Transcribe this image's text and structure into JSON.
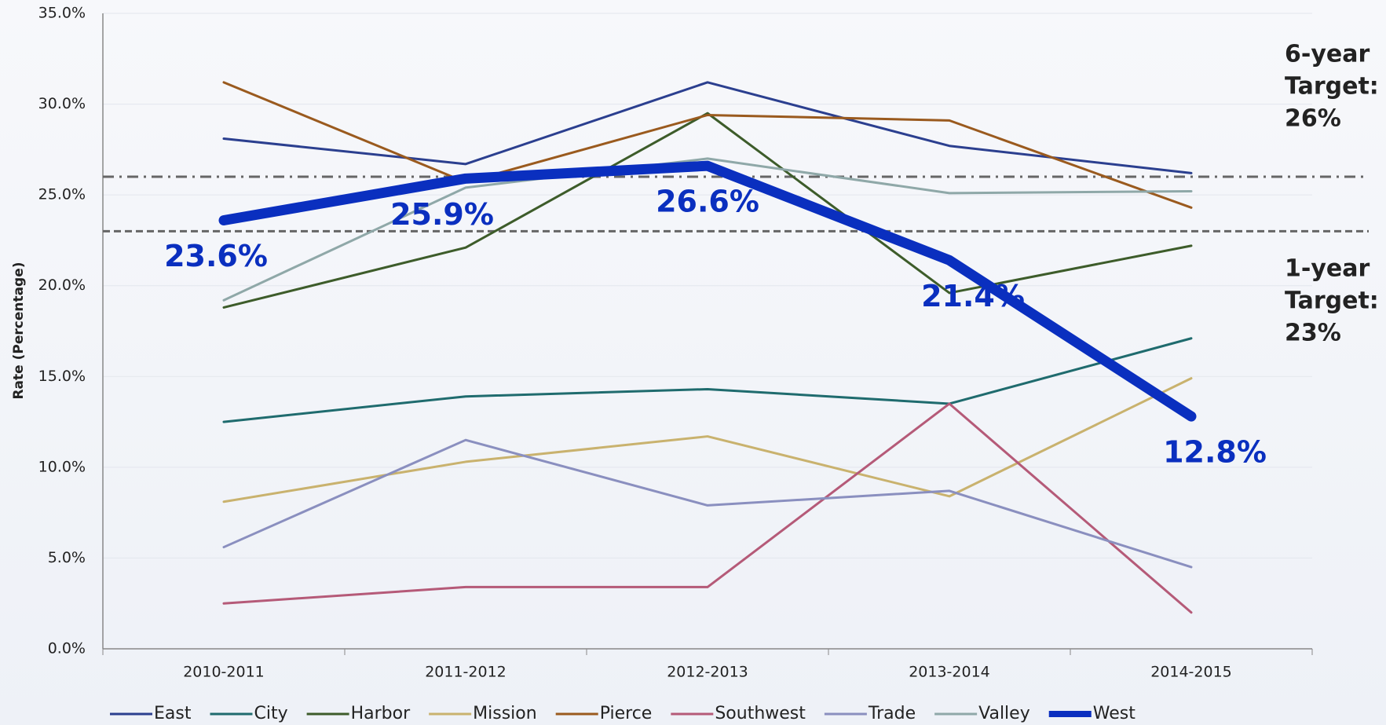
{
  "chart_data": {
    "type": "line",
    "y_label": "Rate (Percentage)",
    "categories": [
      "2010-2011",
      "2011-2012",
      "2012-2013",
      "2013-2014",
      "2014-2015"
    ],
    "ylim": [
      0,
      35
    ],
    "yticks": [
      {
        "value": 0,
        "label": "0.0%"
      },
      {
        "value": 5,
        "label": "5.0%"
      },
      {
        "value": 10,
        "label": "10.0%"
      },
      {
        "value": 15,
        "label": "15.0%"
      },
      {
        "value": 20,
        "label": "20.0%"
      },
      {
        "value": 25,
        "label": "25.0%"
      },
      {
        "value": 30,
        "label": "30.0%"
      },
      {
        "value": 35,
        "label": "35.0%"
      }
    ],
    "grid": true,
    "legend": "bottom",
    "series": [
      {
        "name": "East",
        "color": "#2b3f8f",
        "values": [
          28.1,
          26.7,
          31.2,
          27.7,
          26.2
        ]
      },
      {
        "name": "City",
        "color": "#1f6b6e",
        "values": [
          12.5,
          13.9,
          14.3,
          13.5,
          17.1
        ]
      },
      {
        "name": "Harbor",
        "color": "#3d5c2a",
        "values": [
          18.8,
          22.1,
          29.5,
          19.6,
          22.2
        ]
      },
      {
        "name": "Mission",
        "color": "#c9b26e",
        "values": [
          8.1,
          10.3,
          11.7,
          8.4,
          14.9
        ]
      },
      {
        "name": "Pierce",
        "color": "#9a5a1e",
        "values": [
          31.2,
          25.7,
          29.4,
          29.1,
          24.3
        ]
      },
      {
        "name": "Southwest",
        "color": "#b55a78",
        "values": [
          2.5,
          3.4,
          3.4,
          13.5,
          2.0
        ]
      },
      {
        "name": "Trade",
        "color": "#8a8fbf",
        "values": [
          5.6,
          11.5,
          7.9,
          8.7,
          4.5
        ]
      },
      {
        "name": "Valley",
        "color": "#8fa8a8",
        "values": [
          19.2,
          25.4,
          27.0,
          25.1,
          25.2
        ]
      },
      {
        "name": "West",
        "color": "#0a2fbf",
        "values": [
          23.6,
          25.9,
          26.6,
          21.4,
          12.8
        ],
        "bold": true,
        "value_labels": [
          "23.6%",
          "25.9%",
          "26.6%",
          "21.4%",
          "12.8%"
        ]
      }
    ],
    "targets": [
      {
        "value": 26,
        "style": "dashdot",
        "text": [
          "6-year",
          "Target:",
          "26%"
        ]
      },
      {
        "value": 23,
        "style": "dashed",
        "text": [
          "1-year",
          "Target:",
          "23%"
        ]
      }
    ]
  }
}
